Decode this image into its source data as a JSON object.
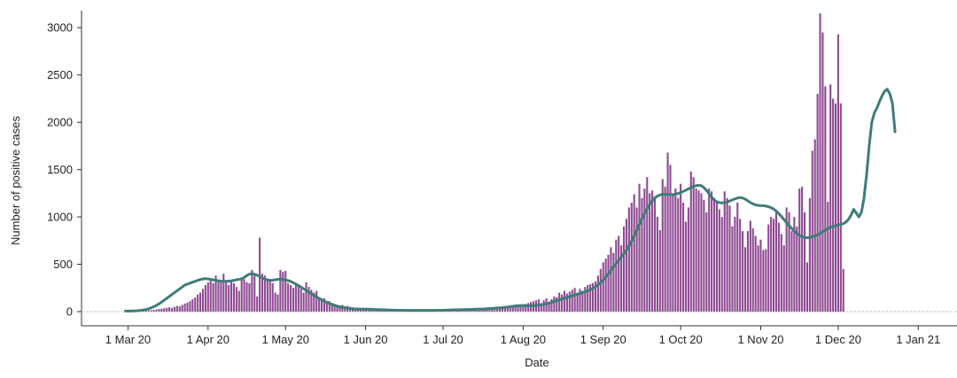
{
  "chart_data": {
    "type": "bar",
    "xlabel": "Date",
    "ylabel": "Number of positive cases",
    "ylim": [
      -150,
      3180
    ],
    "xlim": [
      "2020-02-12",
      "2021-01-16"
    ],
    "yticks": [
      0,
      500,
      1000,
      1500,
      2000,
      2500,
      3000
    ],
    "xticks": [
      {
        "date": "2020-03-01",
        "label": "1 Mar 20"
      },
      {
        "date": "2020-04-01",
        "label": "1 Apr 20"
      },
      {
        "date": "2020-05-01",
        "label": "1 May 20"
      },
      {
        "date": "2020-06-01",
        "label": "1 Jun 20"
      },
      {
        "date": "2020-07-01",
        "label": "1 Jul 20"
      },
      {
        "date": "2020-08-01",
        "label": "1 Aug 20"
      },
      {
        "date": "2020-09-01",
        "label": "1 Sep 20"
      },
      {
        "date": "2020-10-01",
        "label": "1 Oct 20"
      },
      {
        "date": "2020-11-01",
        "label": "1 Nov 20"
      },
      {
        "date": "2020-12-01",
        "label": "1 Dec 20"
      },
      {
        "date": "2021-01-01",
        "label": "1 Jan 21"
      }
    ],
    "bar_color": "#8e4a92",
    "line_color": "#3f7c7a",
    "zero_line": "dotted",
    "grid": false,
    "bars": {
      "start_date": "2020-02-29",
      "values": [
        2,
        3,
        2,
        4,
        5,
        3,
        6,
        8,
        10,
        12,
        15,
        18,
        22,
        26,
        30,
        35,
        40,
        45,
        38,
        50,
        60,
        55,
        70,
        85,
        95,
        110,
        130,
        150,
        180,
        200,
        240,
        280,
        310,
        350,
        300,
        380,
        340,
        320,
        400,
        310,
        280,
        330,
        300,
        260,
        220,
        360,
        340,
        310,
        300,
        440,
        380,
        160,
        780,
        400,
        380,
        350,
        330,
        300,
        200,
        180,
        440,
        420,
        430,
        300,
        280,
        250,
        300,
        270,
        240,
        200,
        310,
        260,
        230,
        200,
        220,
        150,
        120,
        140,
        100,
        110,
        90,
        80,
        70,
        60,
        70,
        55,
        60,
        50,
        45,
        40,
        42,
        35,
        38,
        30,
        32,
        28,
        30,
        25,
        27,
        22,
        24,
        20,
        22,
        20,
        18,
        20,
        18,
        16,
        18,
        15,
        17,
        14,
        16,
        15,
        14,
        13,
        15,
        12,
        14,
        13,
        12,
        14,
        12,
        13,
        11,
        12,
        14,
        13,
        12,
        14,
        13,
        15,
        14,
        16,
        15,
        17,
        16,
        15,
        18,
        20,
        22,
        20,
        25,
        28,
        30,
        35,
        40,
        45,
        50,
        55,
        60,
        65,
        70,
        60,
        75,
        80,
        90,
        100,
        110,
        120,
        130,
        90,
        120,
        140,
        100,
        130,
        160,
        150,
        200,
        180,
        220,
        190,
        210,
        230,
        250,
        200,
        240,
        220,
        260,
        280,
        290,
        300,
        320,
        380,
        450,
        520,
        560,
        600,
        680,
        620,
        760,
        800,
        700,
        900,
        980,
        1100,
        1150,
        1240,
        1100,
        1350,
        1200,
        1300,
        1420,
        1250,
        1280,
        1220,
        1000,
        860,
        1400,
        1320,
        1680,
        1550,
        1250,
        1300,
        1200,
        1350,
        1150,
        950,
        1100,
        1480,
        1420,
        1300,
        1280,
        1250,
        1180,
        1050,
        1300,
        1270,
        1200,
        1150,
        1080,
        1000,
        1270,
        1200,
        1120,
        900,
        1000,
        1150,
        980,
        850,
        680,
        850,
        960,
        880,
        800,
        700,
        760,
        650,
        660,
        920,
        1000,
        980,
        1050,
        940,
        820,
        700,
        1100,
        1050,
        850,
        1000,
        900,
        1300,
        1320,
        1050,
        520,
        1200,
        1700,
        1820,
        2300,
        3150,
        2950,
        2380,
        1160,
        2400,
        2250,
        2200,
        2930,
        2200,
        450
      ]
    },
    "trend": {
      "start_date": "2020-02-29",
      "values": [
        5,
        5,
        6,
        7,
        8,
        10,
        13,
        17,
        22,
        30,
        40,
        52,
        66,
        82,
        100,
        120,
        140,
        160,
        180,
        200,
        220,
        240,
        260,
        280,
        290,
        300,
        310,
        320,
        330,
        338,
        345,
        348,
        345,
        340,
        335,
        330,
        325,
        322,
        320,
        320,
        322,
        325,
        330,
        336,
        340,
        345,
        360,
        380,
        395,
        400,
        395,
        385,
        370,
        355,
        342,
        335,
        330,
        332,
        336,
        340,
        342,
        340,
        335,
        328,
        318,
        305,
        290,
        275,
        258,
        240,
        222,
        205,
        188,
        172,
        155,
        140,
        125,
        110,
        98,
        86,
        75,
        66,
        58,
        51,
        45,
        40,
        36,
        32,
        29,
        27,
        26,
        26,
        26,
        25,
        25,
        24,
        23,
        22,
        21,
        20,
        19,
        18,
        17,
        16,
        15,
        15,
        14,
        14,
        13,
        13,
        13,
        12,
        12,
        12,
        12,
        12,
        12,
        12,
        12,
        13,
        13,
        14,
        14,
        15,
        15,
        16,
        17,
        18,
        18,
        19,
        20,
        21,
        22,
        22,
        23,
        24,
        25,
        26,
        27,
        28,
        30,
        32,
        34,
        36,
        38,
        40,
        42,
        45,
        48,
        52,
        56,
        60,
        62,
        64,
        64,
        63,
        62,
        62,
        63,
        65,
        68,
        72,
        77,
        83,
        90,
        98,
        106,
        115,
        124,
        133,
        142,
        150,
        158,
        166,
        175,
        184,
        192,
        200,
        208,
        218,
        230,
        245,
        262,
        282,
        306,
        334,
        366,
        400,
        436,
        472,
        506,
        540,
        575,
        610,
        650,
        695,
        745,
        800,
        860,
        920,
        980,
        1035,
        1085,
        1130,
        1170,
        1200,
        1220,
        1232,
        1238,
        1240,
        1238,
        1235,
        1235,
        1240,
        1248,
        1258,
        1270,
        1283,
        1297,
        1310,
        1322,
        1330,
        1335,
        1330,
        1310,
        1280,
        1245,
        1210,
        1180,
        1160,
        1150,
        1148,
        1150,
        1158,
        1168,
        1180,
        1190,
        1200,
        1205,
        1200,
        1188,
        1170,
        1152,
        1138,
        1128,
        1122,
        1120,
        1118,
        1115,
        1108,
        1098,
        1083,
        1062,
        1035,
        1005,
        973,
        940,
        908,
        878,
        850,
        826,
        806,
        792,
        783,
        780,
        783,
        790,
        800,
        812,
        826,
        842,
        860,
        876,
        890,
        900,
        908,
        915,
        922,
        930,
        945,
        975,
        1020,
        1080,
        1040,
        1000,
        1050,
        1200,
        1450,
        1750,
        2000,
        2100,
        2150,
        2220,
        2280,
        2330,
        2350,
        2300,
        2200,
        1900
      ]
    }
  }
}
